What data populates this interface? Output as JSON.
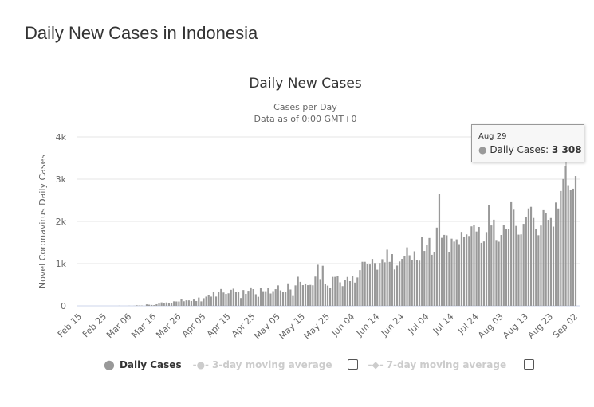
{
  "page_title": "Daily New Cases in Indonesia",
  "tooltip": {
    "date": "Aug 29",
    "series": "Daily Cases: ",
    "value": "3 308"
  },
  "legend": {
    "daily": "Daily Cases",
    "avg3": "3-day moving average",
    "avg7": "7-day moving average"
  },
  "colors": {
    "bar": "#999999",
    "grid": "#e6e6e6",
    "legend_inactive": "#cccccc"
  },
  "chart_data": {
    "type": "bar",
    "title": "Daily New Cases",
    "subtitle1": "Cases per Day",
    "subtitle2": "Data as of 0:00 GMT+0",
    "ylabel": "Novel Coronavirus Daily Cases",
    "ylim": [
      0,
      4000
    ],
    "yticks": [
      "0",
      "1k",
      "2k",
      "3k",
      "4k"
    ],
    "yticks_values": [
      0,
      1000,
      2000,
      3000,
      4000
    ],
    "grid": true,
    "xticks": [
      "Feb 15",
      "Feb 25",
      "Mar 06",
      "Mar 16",
      "Mar 26",
      "Apr 05",
      "Apr 15",
      "Apr 25",
      "May 05",
      "May 15",
      "May 25",
      "Jun 04",
      "Jun 14",
      "Jun 24",
      "Jul 04",
      "Jul 14",
      "Jul 24",
      "Aug 03",
      "Aug 13",
      "Aug 23",
      "Sep 02"
    ],
    "months": [
      {
        "month": "Feb",
        "first_day": 15,
        "values": [
          0,
          0,
          0,
          0,
          0,
          0,
          0,
          0,
          0,
          0,
          0,
          0,
          0,
          0,
          0
        ]
      },
      {
        "month": "Mar",
        "first_day": 1,
        "values": [
          0,
          2,
          0,
          0,
          0,
          2,
          0,
          2,
          13,
          8,
          7,
          0,
          35,
          27,
          21,
          17,
          38,
          55,
          82,
          60,
          81,
          64,
          65,
          107,
          104,
          103,
          153,
          109,
          130,
          129,
          114
        ]
      },
      {
        "month": "Apr",
        "first_day": 1,
        "values": [
          149,
          113,
          196,
          106,
          181,
          218,
          247,
          218,
          337,
          219,
          330,
          399,
          316,
          282,
          297,
          380,
          407,
          325,
          327,
          185,
          375,
          283,
          357,
          436,
          396,
          275,
          214,
          415,
          347,
          347
        ]
      },
      {
        "month": "May",
        "first_day": 1,
        "values": [
          433,
          292,
          349,
          395,
          484,
          367,
          338,
          336,
          533,
          387,
          233,
          484,
          689,
          568,
          490,
          529,
          489,
          496,
          486,
          693,
          973,
          634,
          949,
          526,
          479,
          415,
          686,
          687,
          700,
          557,
          467
        ]
      },
      {
        "month": "Jun",
        "first_day": 1,
        "values": [
          609,
          684,
          585,
          703,
          551,
          672,
          847,
          1043,
          1043,
          993,
          979,
          1111,
          1014,
          857,
          1017,
          1106,
          1031,
          1331,
          1041,
          1226,
          862,
          954,
          1051,
          1113,
          1178,
          1385,
          1198,
          1082,
          1293,
          1082
        ]
      },
      {
        "month": "Jul",
        "first_day": 1,
        "values": [
          1071,
          1624,
          1301,
          1447,
          1607,
          1209,
          1268,
          1853,
          2657,
          1611,
          1681,
          1671,
          1282,
          1591,
          1522,
          1574,
          1462,
          1752,
          1639,
          1693,
          1655,
          1882,
          1906,
          1761,
          1868,
          1492,
          1525,
          1748,
          2381,
          1904,
          2040
        ]
      },
      {
        "month": "Aug",
        "first_day": 1,
        "values": [
          1560,
          1519,
          1679,
          1922,
          1815,
          1815,
          2473,
          2277,
          1893,
          1687,
          1693,
          1942,
          2098,
          2307,
          2345,
          2081,
          1821,
          1673,
          1902,
          2266,
          2197,
          2037,
          2080,
          1877,
          2447,
          2306,
          2719,
          3003,
          3308,
          2858,
          2743
        ]
      },
      {
        "month": "Sep",
        "first_day": 1,
        "values": [
          2775,
          3075
        ]
      }
    ],
    "legend": "bottom-center"
  }
}
